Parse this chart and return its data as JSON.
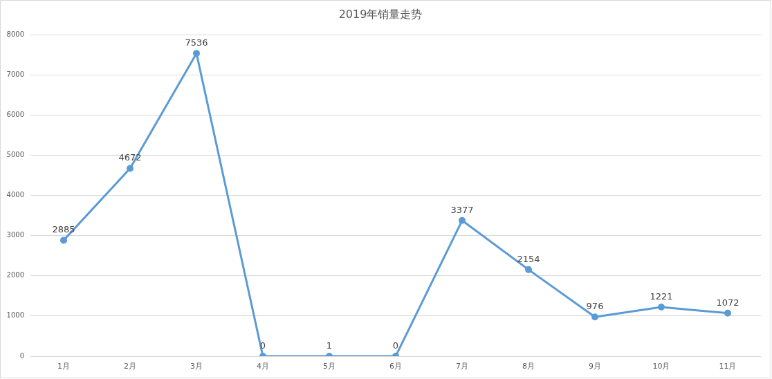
{
  "chart_data": {
    "type": "line",
    "title": "2019年销量走势",
    "categories": [
      "1月",
      "2月",
      "3月",
      "4月",
      "5月",
      "6月",
      "7月",
      "8月",
      "9月",
      "10月",
      "11月"
    ],
    "series": [
      {
        "color": "#5b9bd5",
        "values": [
          2885,
          4672,
          7536,
          0,
          1,
          0,
          3377,
          2154,
          976,
          1221,
          1072
        ]
      }
    ],
    "ylim": [
      0,
      8000
    ],
    "yticks": [
      0,
      1000,
      2000,
      3000,
      4000,
      5000,
      6000,
      7000,
      8000
    ],
    "grid": "y",
    "marker": "circle",
    "line_style": "solid",
    "data_labels": true
  }
}
